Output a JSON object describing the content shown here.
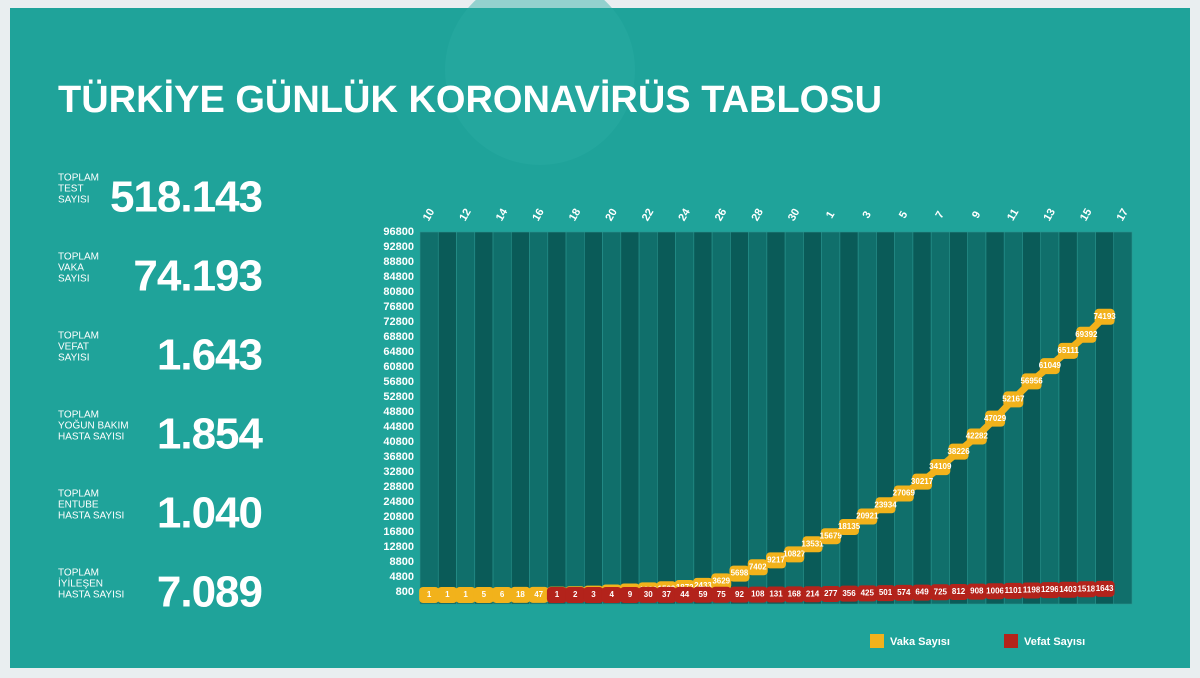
{
  "title": "TÜRKİYE GÜNLÜK KORONAVİRÜS TABLOSU",
  "stats": [
    {
      "label": [
        "TOPLAM",
        "TEST",
        "SAYISI"
      ],
      "value": "518.143"
    },
    {
      "label": [
        "TOPLAM",
        "VAKA",
        "SAYISI"
      ],
      "value": "74.193"
    },
    {
      "label": [
        "TOPLAM",
        "VEFAT",
        "SAYISI"
      ],
      "value": "1.643"
    },
    {
      "label": [
        "TOPLAM",
        "YOĞUN BAKIM",
        "HASTA SAYISI"
      ],
      "value": "1.854"
    },
    {
      "label": [
        "TOPLAM",
        "ENTUBE",
        "HASTA SAYISI"
      ],
      "value": "1.040"
    },
    {
      "label": [
        "TOPLAM",
        "İYİLEŞEN",
        "HASTA SAYISI"
      ],
      "value": "7.089"
    }
  ],
  "chart_data": {
    "type": "line",
    "categories": [
      "10",
      null,
      "12",
      null,
      "14",
      null,
      "16",
      null,
      "18",
      null,
      "20",
      null,
      "22",
      null,
      "24",
      null,
      "26",
      null,
      "28",
      null,
      "30",
      null,
      "1",
      null,
      "3",
      null,
      "5",
      null,
      "7",
      null,
      "9",
      null,
      "11",
      null,
      "13",
      null,
      "15",
      null,
      "17"
    ],
    "series": [
      {
        "name": "Vaka Sayısı",
        "color": "#f2b21b",
        "values": [
          1,
          1,
          1,
          5,
          6,
          18,
          47,
          98,
          191,
          359,
          670,
          947,
          1236,
          1529,
          1872,
          2433,
          3629,
          5698,
          7402,
          9217,
          10827,
          13531,
          15679,
          18135,
          20921,
          23934,
          27069,
          30217,
          34109,
          38226,
          42282,
          47029,
          52167,
          56956,
          61049,
          65111,
          69392,
          74193,
          null
        ]
      },
      {
        "name": "Vefat Sayısı",
        "color": "#b3231b",
        "values": [
          null,
          null,
          null,
          null,
          null,
          null,
          null,
          1,
          2,
          3,
          4,
          9,
          30,
          37,
          44,
          59,
          75,
          92,
          108,
          131,
          168,
          214,
          277,
          356,
          425,
          501,
          574,
          649,
          725,
          812,
          908,
          1006,
          1101,
          1198,
          1296,
          1403,
          1518,
          1643,
          null
        ]
      }
    ],
    "ylim": [
      -2400,
      96800
    ],
    "yticks": [
      800,
      4800,
      8800,
      12800,
      16800,
      20800,
      24800,
      28800,
      32800,
      36800,
      40800,
      44800,
      48800,
      52800,
      56800,
      60800,
      64800,
      68800,
      72800,
      76800,
      80800,
      84800,
      88800,
      92800,
      96800
    ]
  }
}
